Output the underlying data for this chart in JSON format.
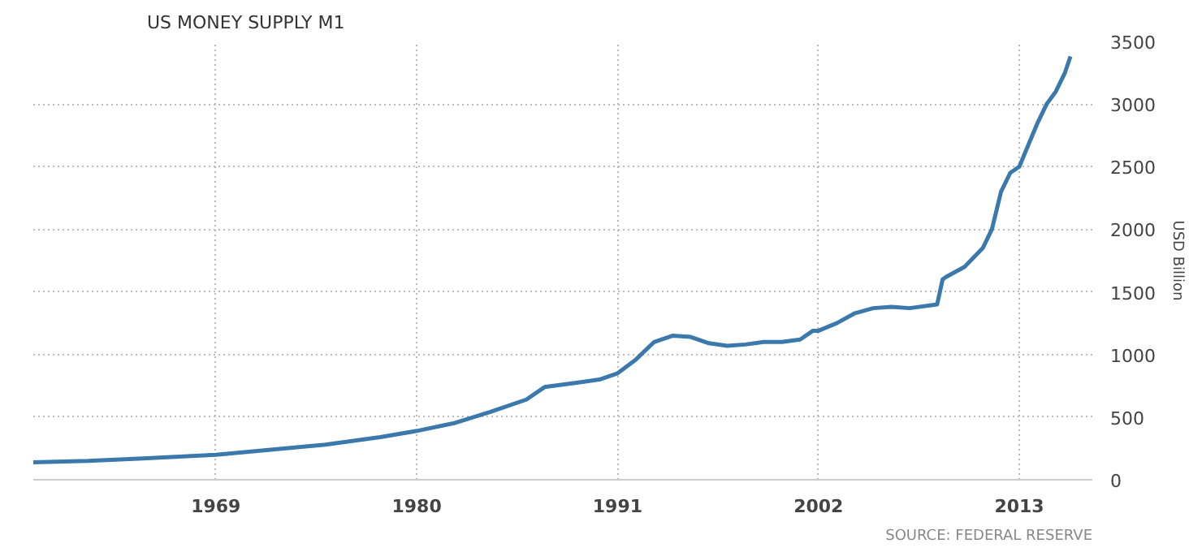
{
  "chart_data": {
    "type": "line",
    "title": "US MONEY SUPPLY M1",
    "y2label": "USD Billion",
    "x": [
      1959,
      1962,
      1965,
      1969,
      1972,
      1975,
      1978,
      1980,
      1982,
      1984,
      1986,
      1987,
      1989,
      1990,
      1991,
      1992,
      1993,
      1994,
      1995,
      1996,
      1997,
      1998,
      1999,
      2000,
      2001,
      2001.7,
      2002,
      2003,
      2004,
      2005,
      2006,
      2007,
      2008.5,
      2008.8,
      2009,
      2010,
      2011,
      2011.5,
      2011.7,
      2012,
      2012.5,
      2013,
      2014,
      2014.5,
      2015,
      2015.5,
      2015.8
    ],
    "series": [
      {
        "color": "#3b78ac",
        "axis": "y2",
        "values": [
          140,
          150,
          170,
          200,
          240,
          280,
          340,
          390,
          450,
          540,
          640,
          740,
          780,
          800,
          850,
          960,
          1100,
          1150,
          1140,
          1090,
          1070,
          1080,
          1100,
          1100,
          1120,
          1190,
          1190,
          1250,
          1330,
          1370,
          1380,
          1370,
          1400,
          1600,
          1620,
          1700,
          1850,
          2000,
          2120,
          2300,
          2450,
          2500,
          2850,
          3000,
          3100,
          3250,
          3380
        ]
      }
    ],
    "xlim": [
      1959,
      2017
    ],
    "xticks": [
      1969,
      1980,
      1991,
      2002,
      2013
    ],
    "y2lim": [
      0,
      3500
    ],
    "y2ticks": [
      0,
      500,
      1000,
      1500,
      2000,
      2500,
      3000,
      3500
    ],
    "grid": true,
    "marker": "none",
    "line_style": "solid",
    "annotations": [
      "SOURCE: FEDERAL RESERVE"
    ]
  }
}
